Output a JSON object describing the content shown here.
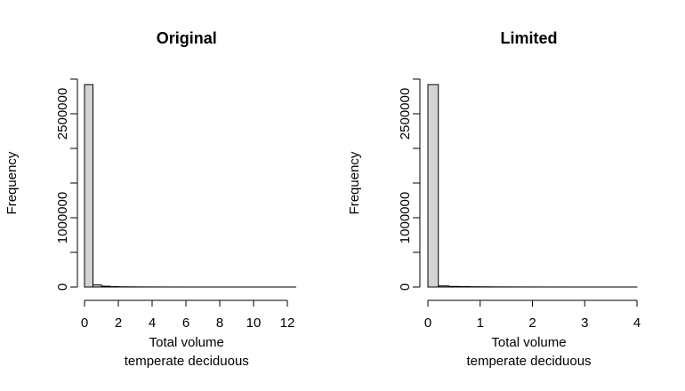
{
  "chart_data": [
    {
      "type": "histogram",
      "title": "Original",
      "xlabel": [
        "Total volume",
        "temperate deciduous"
      ],
      "ylabel": "Frequency",
      "color": "#d3d3d3",
      "bins": [
        0,
        0.5,
        1,
        1.5,
        2,
        2.5,
        3,
        3.5,
        4,
        4.5,
        5,
        5.5,
        6,
        6.5,
        7,
        7.5,
        8,
        8.5,
        9,
        9.5,
        10,
        10.5,
        11,
        11.5,
        12,
        12.5
      ],
      "values": [
        2920000,
        30000,
        12000,
        6000,
        3500,
        2500,
        1800,
        1300,
        1000,
        800,
        600,
        500,
        400,
        300,
        250,
        200,
        150,
        120,
        100,
        80,
        60,
        50,
        40,
        30,
        20
      ],
      "xlim": [
        0,
        12.5
      ],
      "xticks": [
        0,
        2,
        4,
        6,
        8,
        10,
        12
      ],
      "ylim": [
        0,
        3000000
      ],
      "yticks": [
        0,
        {
          "value": 500000,
          "label": null
        },
        1000000,
        {
          "value": 1500000,
          "label": null
        },
        {
          "value": 2000000,
          "label": null
        },
        2500000,
        {
          "value": 3000000,
          "label": null
        }
      ]
    },
    {
      "type": "histogram",
      "title": "Limited",
      "xlabel": [
        "Total volume",
        "temperate deciduous"
      ],
      "ylabel": "Frequency",
      "color": "#d3d3d3",
      "bins": [
        0,
        0.2,
        0.4,
        0.6,
        0.8,
        1,
        1.2,
        1.4,
        1.6,
        1.8,
        2,
        2.2,
        2.4,
        2.6,
        2.8,
        3,
        3.2,
        3.4,
        3.6,
        3.8,
        4
      ],
      "values": [
        2920000,
        16000,
        9000,
        6000,
        4000,
        3000,
        2200,
        1700,
        1300,
        1000,
        800,
        650,
        500,
        400,
        320,
        260,
        200,
        160,
        120,
        100
      ],
      "xlim": [
        0,
        4
      ],
      "xticks": [
        0,
        1,
        2,
        3,
        4
      ],
      "ylim": [
        0,
        3000000
      ],
      "yticks": [
        0,
        {
          "value": 500000,
          "label": null
        },
        1000000,
        {
          "value": 1500000,
          "label": null
        },
        {
          "value": 2000000,
          "label": null
        },
        2500000,
        {
          "value": 3000000,
          "label": null
        }
      ]
    }
  ]
}
